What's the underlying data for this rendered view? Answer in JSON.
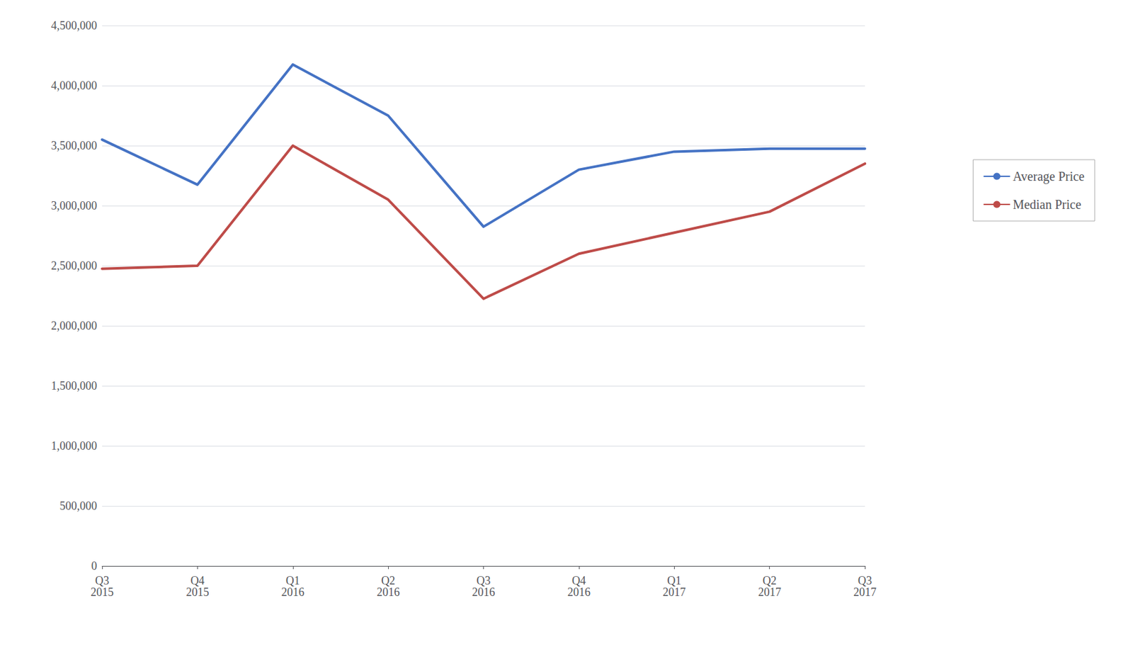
{
  "chart_data": {
    "type": "line",
    "categories": [
      "Q3\n2015",
      "Q4\n2015",
      "Q1\n2016",
      "Q2\n2016",
      "Q3\n2016",
      "Q4\n2016",
      "Q1\n2017",
      "Q2\n2017",
      "Q3\n2017"
    ],
    "series": [
      {
        "name": "Average Price",
        "color": "#4472C4",
        "values": [
          3550000,
          3175000,
          4175000,
          3750000,
          2825000,
          3300000,
          3450000,
          3475000,
          3475000
        ]
      },
      {
        "name": "Median Price",
        "color": "#BE4B48",
        "values": [
          2475000,
          2500000,
          3500000,
          3050000,
          2225000,
          2600000,
          2775000,
          2950000,
          3350000
        ]
      }
    ],
    "ylim": [
      0,
      4500000
    ],
    "yticks": [
      0,
      {
        "value": 500000,
        "label": "500,000"
      },
      {
        "value": 1000000,
        "label": "1,000,000"
      },
      {
        "value": 1500000,
        "label": "1,500,000"
      },
      {
        "value": 2000000,
        "label": "2,000,000"
      },
      {
        "value": 2500000,
        "label": "2,500,000"
      },
      {
        "value": 3000000,
        "label": "3,000,000"
      },
      {
        "value": 3500000,
        "label": "3,500,000"
      },
      {
        "value": 4000000,
        "label": "4,000,000"
      },
      {
        "value": 4500000,
        "label": "4,500,000"
      }
    ],
    "grid": true,
    "legend": "right"
  }
}
